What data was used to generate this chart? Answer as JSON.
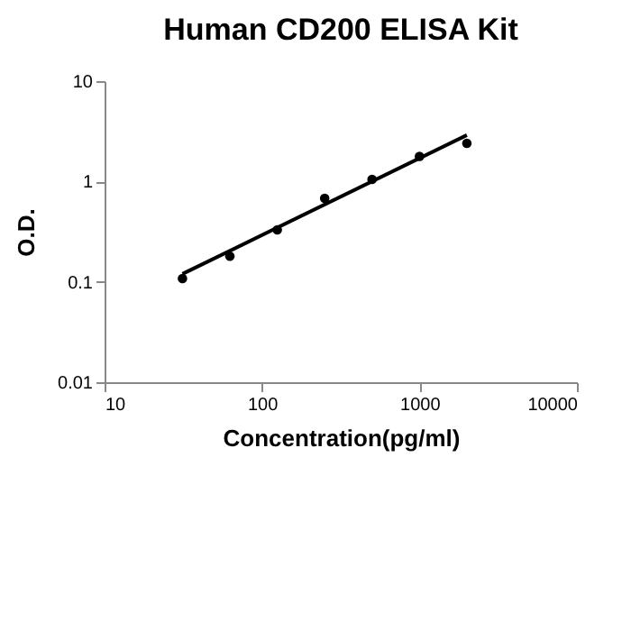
{
  "chart_data": {
    "type": "scatter",
    "title": "Human CD200 ELISA Kit",
    "xlabel": "Concentration(pg/ml)",
    "ylabel": "O.D.",
    "log": "xy",
    "xlim": [
      10,
      10000
    ],
    "xticks": [
      10,
      100,
      1000,
      10000
    ],
    "ylim": [
      0.01,
      10
    ],
    "yticks": [
      0.01,
      0.1,
      1,
      10
    ],
    "grid": false,
    "marker": "circle",
    "series": [
      {
        "color": "#000000",
        "x": [
          31.25,
          62.5,
          125,
          250,
          500,
          1000,
          2000
        ],
        "values": [
          0.108,
          0.18,
          0.33,
          0.68,
          1.05,
          1.78,
          2.4
        ]
      },
      {
        "type": "line",
        "color": "#000000",
        "line_style": "solid",
        "marker": "none",
        "x": [
          31.25,
          2000
        ],
        "values": [
          0.12,
          2.9
        ]
      }
    ]
  }
}
